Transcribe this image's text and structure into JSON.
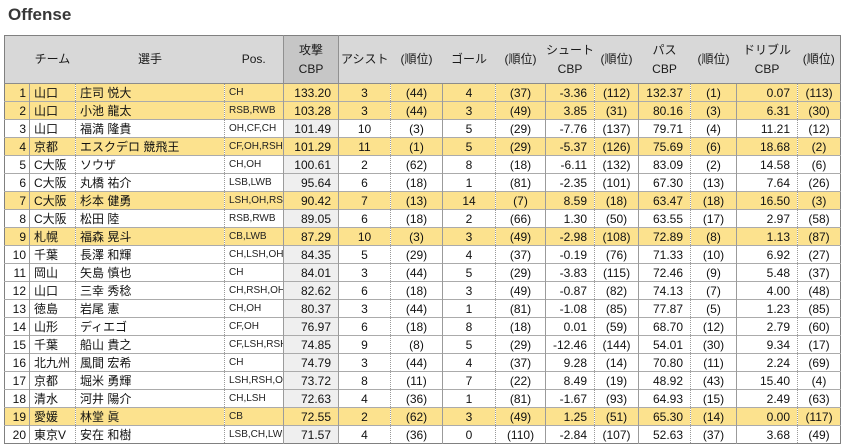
{
  "title": "Offense",
  "colors": {
    "highlight_row": "#FCE28E",
    "header_bg": "#D8D8D8",
    "attack_header_bg": "#C6C6C6",
    "attack_column_bg": "#EFEFEF",
    "border": "#808080",
    "title_text": "#383838"
  },
  "chart_data": {
    "type": "table",
    "title": "Offense",
    "columns": [
      "",
      "チーム",
      "選手",
      "Pos.",
      "攻撃\nCBP",
      "アシスト",
      "(順位)",
      "ゴール",
      "(順位)",
      "シュート\nCBP",
      "(順位)",
      "パス\nCBP",
      "(順位)",
      "ドリブル\nCBP",
      "(順位)"
    ],
    "rows": [
      {
        "rank": "1",
        "team": "山口",
        "player": "庄司 悦大",
        "pos": "CH",
        "attack_cbp": "133.20",
        "assists": "3",
        "assists_rank": "(44)",
        "goals": "4",
        "goals_rank": "(37)",
        "shoot_cbp": "-3.36",
        "shoot_rank": "(112)",
        "pass_cbp": "132.37",
        "pass_rank": "(1)",
        "dribble_cbp": "0.07",
        "dribble_rank": "(113)",
        "highlight": true
      },
      {
        "rank": "2",
        "team": "山口",
        "player": "小池 龍太",
        "pos": "RSB,RWB",
        "attack_cbp": "103.28",
        "assists": "3",
        "assists_rank": "(44)",
        "goals": "3",
        "goals_rank": "(49)",
        "shoot_cbp": "3.85",
        "shoot_rank": "(31)",
        "pass_cbp": "80.16",
        "pass_rank": "(3)",
        "dribble_cbp": "6.31",
        "dribble_rank": "(30)",
        "highlight": true
      },
      {
        "rank": "3",
        "team": "山口",
        "player": "福満 隆貴",
        "pos": "OH,CF,CH",
        "attack_cbp": "101.49",
        "assists": "10",
        "assists_rank": "(3)",
        "goals": "5",
        "goals_rank": "(29)",
        "shoot_cbp": "-7.76",
        "shoot_rank": "(137)",
        "pass_cbp": "79.71",
        "pass_rank": "(4)",
        "dribble_cbp": "11.21",
        "dribble_rank": "(12)",
        "highlight": false
      },
      {
        "rank": "4",
        "team": "京都",
        "player": "エスクデロ 競飛王",
        "pos": "CF,OH,RSH",
        "attack_cbp": "101.29",
        "assists": "11",
        "assists_rank": "(1)",
        "goals": "5",
        "goals_rank": "(29)",
        "shoot_cbp": "-5.37",
        "shoot_rank": "(126)",
        "pass_cbp": "75.69",
        "pass_rank": "(6)",
        "dribble_cbp": "18.68",
        "dribble_rank": "(2)",
        "highlight": true
      },
      {
        "rank": "5",
        "team": "C大阪",
        "player": "ソウザ",
        "pos": "CH,OH",
        "attack_cbp": "100.61",
        "assists": "2",
        "assists_rank": "(62)",
        "goals": "8",
        "goals_rank": "(18)",
        "shoot_cbp": "-6.11",
        "shoot_rank": "(132)",
        "pass_cbp": "83.09",
        "pass_rank": "(2)",
        "dribble_cbp": "14.58",
        "dribble_rank": "(6)",
        "highlight": false
      },
      {
        "rank": "6",
        "team": "C大阪",
        "player": "丸橋 祐介",
        "pos": "LSB,LWB",
        "attack_cbp": "95.64",
        "assists": "6",
        "assists_rank": "(18)",
        "goals": "1",
        "goals_rank": "(81)",
        "shoot_cbp": "-2.35",
        "shoot_rank": "(101)",
        "pass_cbp": "67.30",
        "pass_rank": "(13)",
        "dribble_cbp": "7.64",
        "dribble_rank": "(26)",
        "highlight": false
      },
      {
        "rank": "7",
        "team": "C大阪",
        "player": "杉本 健勇",
        "pos": "LSH,OH,RSH",
        "attack_cbp": "90.42",
        "assists": "7",
        "assists_rank": "(13)",
        "goals": "14",
        "goals_rank": "(7)",
        "shoot_cbp": "8.59",
        "shoot_rank": "(18)",
        "pass_cbp": "63.47",
        "pass_rank": "(18)",
        "dribble_cbp": "16.50",
        "dribble_rank": "(3)",
        "highlight": true
      },
      {
        "rank": "8",
        "team": "C大阪",
        "player": "松田 陸",
        "pos": "RSB,RWB",
        "attack_cbp": "89.05",
        "assists": "6",
        "assists_rank": "(18)",
        "goals": "2",
        "goals_rank": "(66)",
        "shoot_cbp": "1.30",
        "shoot_rank": "(50)",
        "pass_cbp": "63.55",
        "pass_rank": "(17)",
        "dribble_cbp": "2.97",
        "dribble_rank": "(58)",
        "highlight": false
      },
      {
        "rank": "9",
        "team": "札幌",
        "player": "福森 晃斗",
        "pos": "CB,LWB",
        "attack_cbp": "87.29",
        "assists": "10",
        "assists_rank": "(3)",
        "goals": "3",
        "goals_rank": "(49)",
        "shoot_cbp": "-2.98",
        "shoot_rank": "(108)",
        "pass_cbp": "72.89",
        "pass_rank": "(8)",
        "dribble_cbp": "1.13",
        "dribble_rank": "(87)",
        "highlight": true
      },
      {
        "rank": "10",
        "team": "千葉",
        "player": "長澤 和輝",
        "pos": "CH,LSH,OH",
        "attack_cbp": "84.35",
        "assists": "5",
        "assists_rank": "(29)",
        "goals": "4",
        "goals_rank": "(37)",
        "shoot_cbp": "-0.19",
        "shoot_rank": "(76)",
        "pass_cbp": "71.33",
        "pass_rank": "(10)",
        "dribble_cbp": "6.92",
        "dribble_rank": "(27)",
        "highlight": false
      },
      {
        "rank": "11",
        "team": "岡山",
        "player": "矢島 慎也",
        "pos": "CH",
        "attack_cbp": "84.01",
        "assists": "3",
        "assists_rank": "(44)",
        "goals": "5",
        "goals_rank": "(29)",
        "shoot_cbp": "-3.83",
        "shoot_rank": "(115)",
        "pass_cbp": "72.46",
        "pass_rank": "(9)",
        "dribble_cbp": "5.48",
        "dribble_rank": "(37)",
        "highlight": false
      },
      {
        "rank": "12",
        "team": "山口",
        "player": "三幸 秀稔",
        "pos": "CH,RSH,OH",
        "attack_cbp": "82.62",
        "assists": "6",
        "assists_rank": "(18)",
        "goals": "3",
        "goals_rank": "(49)",
        "shoot_cbp": "-0.87",
        "shoot_rank": "(82)",
        "pass_cbp": "74.13",
        "pass_rank": "(7)",
        "dribble_cbp": "4.00",
        "dribble_rank": "(48)",
        "highlight": false
      },
      {
        "rank": "13",
        "team": "徳島",
        "player": "岩尾 憲",
        "pos": "CH,OH",
        "attack_cbp": "80.37",
        "assists": "3",
        "assists_rank": "(44)",
        "goals": "1",
        "goals_rank": "(81)",
        "shoot_cbp": "-1.08",
        "shoot_rank": "(85)",
        "pass_cbp": "77.87",
        "pass_rank": "(5)",
        "dribble_cbp": "1.23",
        "dribble_rank": "(85)",
        "highlight": false
      },
      {
        "rank": "14",
        "team": "山形",
        "player": "ディエゴ",
        "pos": "CF,OH",
        "attack_cbp": "76.97",
        "assists": "6",
        "assists_rank": "(18)",
        "goals": "8",
        "goals_rank": "(18)",
        "shoot_cbp": "0.01",
        "shoot_rank": "(59)",
        "pass_cbp": "68.70",
        "pass_rank": "(12)",
        "dribble_cbp": "2.79",
        "dribble_rank": "(60)",
        "highlight": false
      },
      {
        "rank": "15",
        "team": "千葉",
        "player": "船山 貴之",
        "pos": "CF,LSH,RSH",
        "attack_cbp": "74.85",
        "assists": "9",
        "assists_rank": "(8)",
        "goals": "5",
        "goals_rank": "(29)",
        "shoot_cbp": "-12.46",
        "shoot_rank": "(144)",
        "pass_cbp": "54.01",
        "pass_rank": "(30)",
        "dribble_cbp": "9.34",
        "dribble_rank": "(17)",
        "highlight": false
      },
      {
        "rank": "16",
        "team": "北九州",
        "player": "風間 宏希",
        "pos": "CH",
        "attack_cbp": "74.79",
        "assists": "3",
        "assists_rank": "(44)",
        "goals": "4",
        "goals_rank": "(37)",
        "shoot_cbp": "9.28",
        "shoot_rank": "(14)",
        "pass_cbp": "70.80",
        "pass_rank": "(11)",
        "dribble_cbp": "2.24",
        "dribble_rank": "(69)",
        "highlight": false
      },
      {
        "rank": "17",
        "team": "京都",
        "player": "堀米 勇輝",
        "pos": "LSH,RSH,OH",
        "attack_cbp": "73.72",
        "assists": "8",
        "assists_rank": "(11)",
        "goals": "7",
        "goals_rank": "(22)",
        "shoot_cbp": "8.49",
        "shoot_rank": "(19)",
        "pass_cbp": "48.92",
        "pass_rank": "(43)",
        "dribble_cbp": "15.40",
        "dribble_rank": "(4)",
        "highlight": false
      },
      {
        "rank": "18",
        "team": "清水",
        "player": "河井 陽介",
        "pos": "CH,LSH",
        "attack_cbp": "72.63",
        "assists": "4",
        "assists_rank": "(36)",
        "goals": "1",
        "goals_rank": "(81)",
        "shoot_cbp": "-1.67",
        "shoot_rank": "(93)",
        "pass_cbp": "64.93",
        "pass_rank": "(15)",
        "dribble_cbp": "2.49",
        "dribble_rank": "(63)",
        "highlight": false
      },
      {
        "rank": "19",
        "team": "愛媛",
        "player": "林堂 眞",
        "pos": "CB",
        "attack_cbp": "72.55",
        "assists": "2",
        "assists_rank": "(62)",
        "goals": "3",
        "goals_rank": "(49)",
        "shoot_cbp": "1.25",
        "shoot_rank": "(51)",
        "pass_cbp": "65.30",
        "pass_rank": "(14)",
        "dribble_cbp": "0.00",
        "dribble_rank": "(117)",
        "highlight": true
      },
      {
        "rank": "20",
        "team": "東京V",
        "player": "安在 和樹",
        "pos": "LSB,CH,LWB",
        "attack_cbp": "71.57",
        "assists": "4",
        "assists_rank": "(36)",
        "goals": "0",
        "goals_rank": "(110)",
        "shoot_cbp": "-2.84",
        "shoot_rank": "(107)",
        "pass_cbp": "52.63",
        "pass_rank": "(37)",
        "dribble_cbp": "3.68",
        "dribble_rank": "(49)",
        "highlight": false
      }
    ]
  }
}
